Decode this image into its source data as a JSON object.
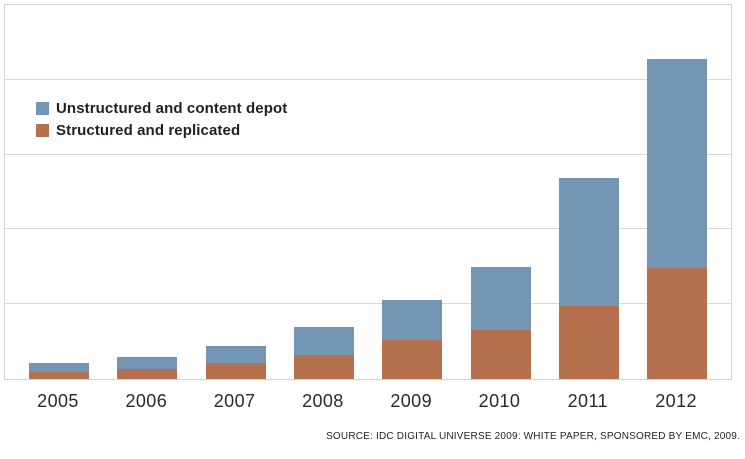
{
  "chart_data": {
    "type": "bar",
    "stacked": true,
    "title": "",
    "xlabel": "",
    "ylabel": "",
    "categories": [
      "2005",
      "2006",
      "2007",
      "2008",
      "2009",
      "2010",
      "2011",
      "2012"
    ],
    "series": [
      {
        "name": "Structured and replicated",
        "color": "#b5714e",
        "values": [
          0.09,
          0.13,
          0.21,
          0.32,
          0.52,
          0.65,
          0.97,
          1.48
        ]
      },
      {
        "name": "Unstructured and content depot",
        "color": "#7396b5",
        "values": [
          0.13,
          0.17,
          0.23,
          0.37,
          0.54,
          0.85,
          1.72,
          2.8
        ]
      }
    ],
    "ylim": [
      0,
      5
    ],
    "y_axis_labels_visible": false,
    "gridline_intervals": 5,
    "grid": "horizontal",
    "legend_position": "top-left-inside",
    "plot_border": "#d2d2d2"
  },
  "legend": {
    "items": [
      {
        "label": "Unstructured and content depot",
        "color": "#7396b5"
      },
      {
        "label": "Structured and replicated",
        "color": "#b5714e"
      }
    ]
  },
  "source": {
    "text": "SOURCE: IDC DIGITAL UNIVERSE 2009: WHITE PAPER, SPONSORED BY EMC, 2009."
  },
  "colors": {
    "unstructured_blue": "#7396b5",
    "structured_orange": "#b5714e",
    "grid_gray": "#d8d8d8",
    "border_gray": "#d2d2d2",
    "text_dark": "#231f20"
  }
}
